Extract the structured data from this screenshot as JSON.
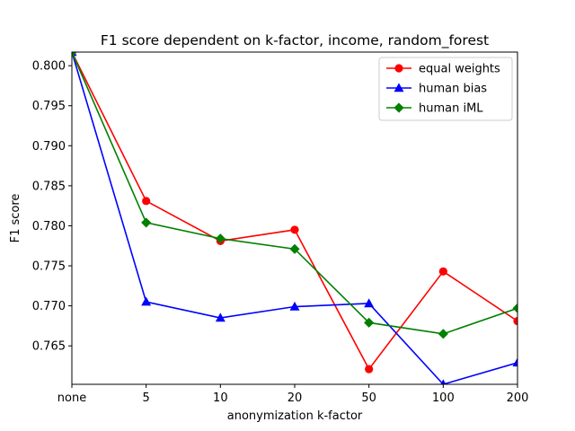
{
  "chart_data": {
    "type": "line",
    "title": "F1 score dependent on k-factor, income, random_forest",
    "xlabel": "anonymization k-factor",
    "ylabel": "F1 score",
    "categories": [
      "none",
      "5",
      "10",
      "20",
      "50",
      "100",
      "200"
    ],
    "ylim": [
      0.7602,
      0.8017
    ],
    "yticks": [
      "0.765",
      "0.770",
      "0.775",
      "0.780",
      "0.785",
      "0.790",
      "0.795",
      "0.800"
    ],
    "grid": false,
    "legend_position": "top-right",
    "series": [
      {
        "name": "equal weights",
        "color": "#ff0000",
        "marker": "circle",
        "values": [
          0.8017,
          0.7831,
          0.7781,
          0.7795,
          0.7621,
          0.7743,
          0.7681
        ]
      },
      {
        "name": "human bias",
        "color": "#0000ff",
        "marker": "triangle",
        "values": [
          0.8017,
          0.7705,
          0.7685,
          0.7699,
          0.7703,
          0.7602,
          0.7629
        ]
      },
      {
        "name": "human iML",
        "color": "#008000",
        "marker": "diamond",
        "values": [
          0.8017,
          0.7804,
          0.7784,
          0.7771,
          0.7679,
          0.7665,
          0.7697
        ]
      }
    ]
  }
}
